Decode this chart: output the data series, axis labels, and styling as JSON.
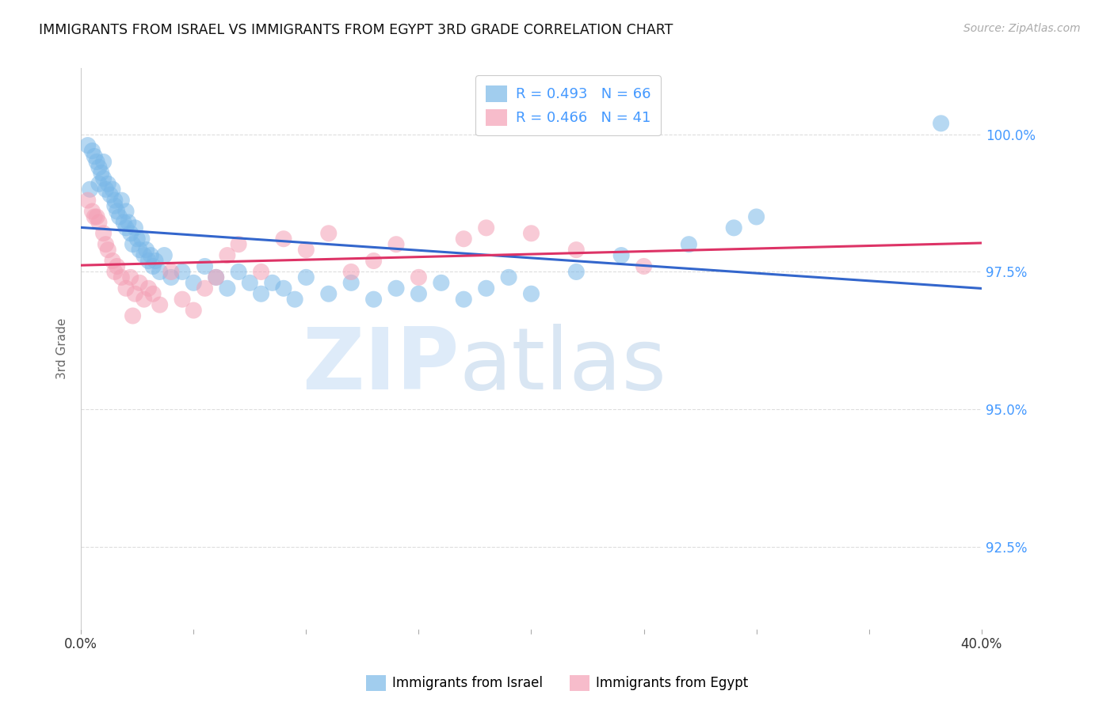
{
  "title": "IMMIGRANTS FROM ISRAEL VS IMMIGRANTS FROM EGYPT 3RD GRADE CORRELATION CHART",
  "source": "Source: ZipAtlas.com",
  "ylabel": "3rd Grade",
  "ylabel_right_labels": [
    "100.0%",
    "97.5%",
    "95.0%",
    "92.5%"
  ],
  "ylabel_right_values": [
    100.0,
    97.5,
    95.0,
    92.5
  ],
  "xmin": 0.0,
  "xmax": 40.0,
  "ymin": 91.0,
  "ymax": 101.2,
  "legend_israel_label": "Immigrants from Israel",
  "legend_egypt_label": "Immigrants from Egypt",
  "israel_R": 0.493,
  "israel_N": 66,
  "egypt_R": 0.466,
  "egypt_N": 41,
  "israel_color": "#7ab8e8",
  "egypt_color": "#f4a0b5",
  "israel_line_color": "#3366cc",
  "egypt_line_color": "#dd3366",
  "grid_color": "#dddddd",
  "title_color": "#111111",
  "source_color": "#aaaaaa",
  "right_tick_color": "#4499ff",
  "israel_x": [
    0.3,
    0.5,
    0.6,
    0.7,
    0.8,
    0.9,
    1.0,
    1.0,
    1.1,
    1.2,
    1.3,
    1.4,
    1.5,
    1.5,
    1.6,
    1.7,
    1.8,
    1.9,
    2.0,
    2.0,
    2.1,
    2.2,
    2.3,
    2.4,
    2.5,
    2.6,
    2.7,
    2.8,
    2.9,
    3.0,
    3.1,
    3.2,
    3.3,
    3.5,
    3.7,
    4.0,
    4.5,
    5.0,
    5.5,
    6.0,
    6.5,
    7.0,
    7.5,
    8.0,
    8.5,
    9.0,
    9.5,
    10.0,
    11.0,
    12.0,
    13.0,
    14.0,
    15.0,
    16.0,
    17.0,
    18.0,
    19.0,
    20.0,
    22.0,
    24.0,
    27.0,
    29.0,
    30.0,
    38.2,
    0.4,
    0.8
  ],
  "israel_y": [
    99.8,
    99.7,
    99.6,
    99.5,
    99.4,
    99.3,
    99.5,
    99.2,
    99.0,
    99.1,
    98.9,
    99.0,
    98.8,
    98.7,
    98.6,
    98.5,
    98.8,
    98.4,
    98.6,
    98.3,
    98.4,
    98.2,
    98.0,
    98.3,
    98.1,
    97.9,
    98.1,
    97.8,
    97.9,
    97.7,
    97.8,
    97.6,
    97.7,
    97.5,
    97.8,
    97.4,
    97.5,
    97.3,
    97.6,
    97.4,
    97.2,
    97.5,
    97.3,
    97.1,
    97.3,
    97.2,
    97.0,
    97.4,
    97.1,
    97.3,
    97.0,
    97.2,
    97.1,
    97.3,
    97.0,
    97.2,
    97.4,
    97.1,
    97.5,
    97.8,
    98.0,
    98.3,
    98.5,
    100.2,
    99.0,
    99.1
  ],
  "egypt_x": [
    0.3,
    0.5,
    0.7,
    0.8,
    1.0,
    1.1,
    1.2,
    1.4,
    1.5,
    1.6,
    1.8,
    2.0,
    2.2,
    2.4,
    2.6,
    2.8,
    3.0,
    3.2,
    3.5,
    4.0,
    4.5,
    5.0,
    5.5,
    6.0,
    6.5,
    7.0,
    8.0,
    9.0,
    10.0,
    11.0,
    12.0,
    13.0,
    14.0,
    15.0,
    17.0,
    18.0,
    20.0,
    22.0,
    25.0,
    0.6,
    2.3
  ],
  "egypt_y": [
    98.8,
    98.6,
    98.5,
    98.4,
    98.2,
    98.0,
    97.9,
    97.7,
    97.5,
    97.6,
    97.4,
    97.2,
    97.4,
    97.1,
    97.3,
    97.0,
    97.2,
    97.1,
    96.9,
    97.5,
    97.0,
    96.8,
    97.2,
    97.4,
    97.8,
    98.0,
    97.5,
    98.1,
    97.9,
    98.2,
    97.5,
    97.7,
    98.0,
    97.4,
    98.1,
    98.3,
    98.2,
    97.9,
    97.6,
    98.5,
    96.7
  ]
}
